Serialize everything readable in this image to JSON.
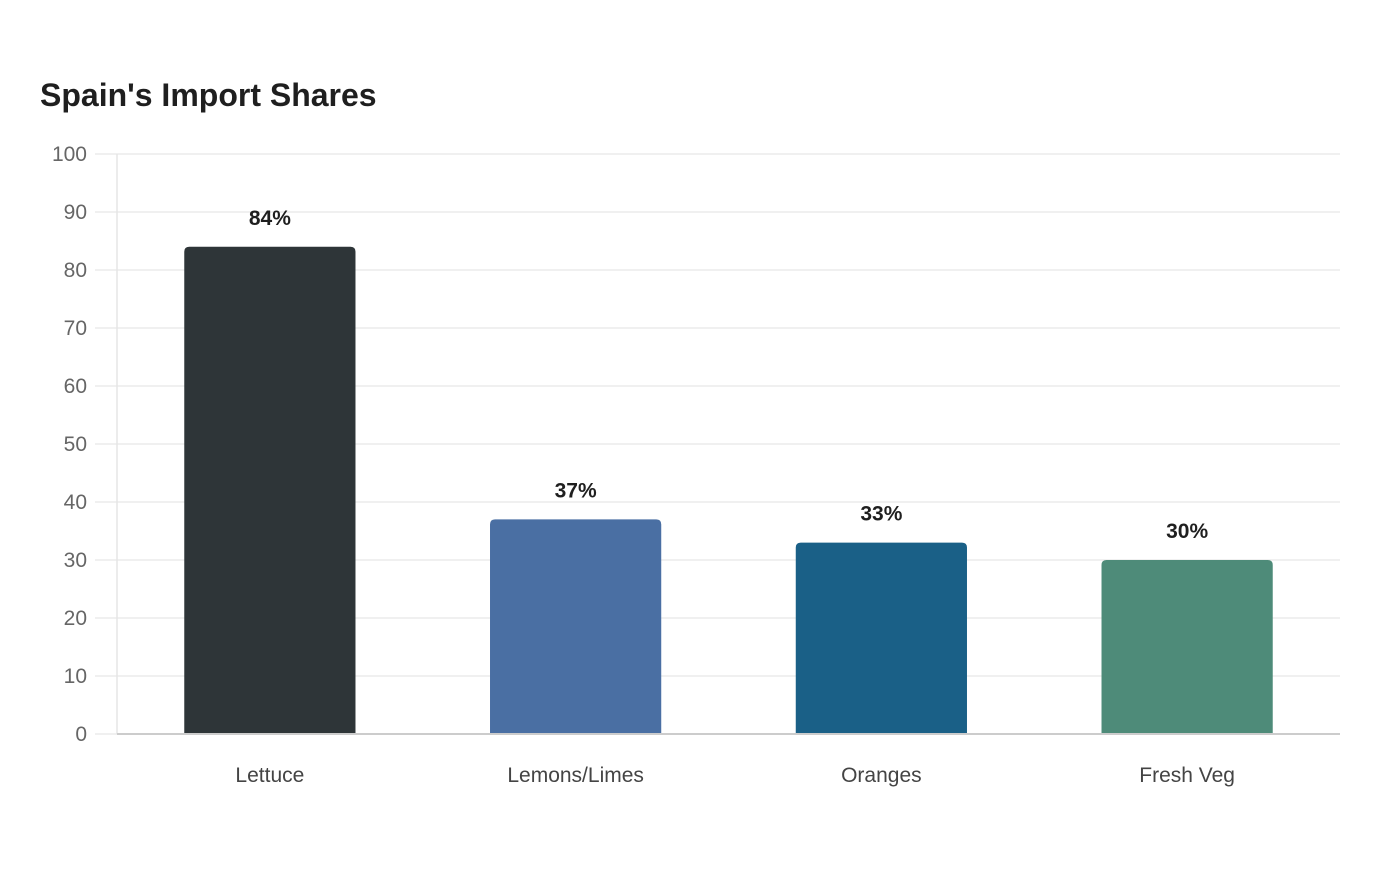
{
  "chart_data": {
    "type": "bar",
    "title": "Spain's Import Shares",
    "xlabel": "",
    "ylabel": "",
    "categories": [
      "Lettuce",
      "Lemons/Limes",
      "Oranges",
      "Fresh Veg"
    ],
    "values": [
      84,
      37,
      33,
      30
    ],
    "value_labels": [
      "84%",
      "37%",
      "33%",
      "30%"
    ],
    "colors": [
      "#2e3538",
      "#4a6fa3",
      "#1a6087",
      "#4e8b79"
    ],
    "ylim": [
      0,
      100
    ],
    "yticks": [
      "0",
      "10",
      "20",
      "30",
      "40",
      "50",
      "60",
      "70",
      "80",
      "90",
      "100"
    ],
    "grid": true,
    "legend": "none"
  }
}
